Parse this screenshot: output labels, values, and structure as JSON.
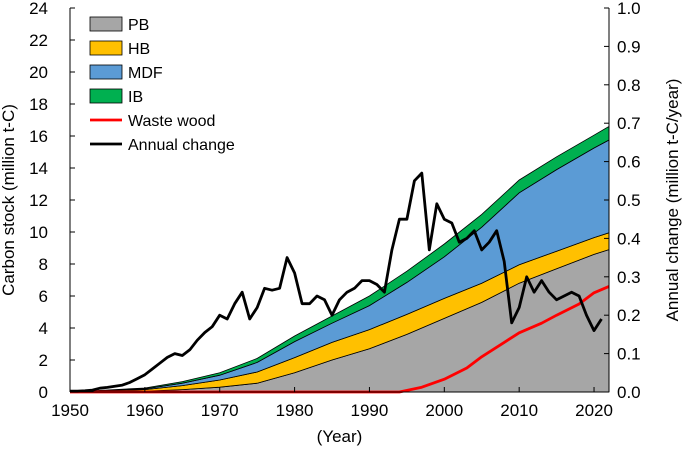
{
  "chart_data": {
    "type": "area",
    "xlabel": "(Year)",
    "ylabel_left": "Carbon stock (million t-C)",
    "ylabel_right": "Annual change (million t-C/year)",
    "xlim": [
      1950,
      2022
    ],
    "ylim_left": [
      0,
      24
    ],
    "ylim_right": [
      0,
      1.0
    ],
    "x_ticks": [
      1950,
      1960,
      1970,
      1980,
      1990,
      2000,
      2010,
      2020
    ],
    "x_tick_labels": [
      "1950",
      "1960",
      "1970",
      "1980",
      "1990",
      "2000",
      "2010",
      "2020"
    ],
    "y_left_ticks": [
      0,
      2,
      4,
      6,
      8,
      10,
      12,
      14,
      16,
      18,
      20,
      22,
      24
    ],
    "y_left_tick_labels": [
      "0",
      "2",
      "4",
      "6",
      "8",
      "10",
      "12",
      "14",
      "16",
      "18",
      "20",
      "22",
      "24"
    ],
    "y_right_ticks": [
      0,
      0.1,
      0.2,
      0.3,
      0.4,
      0.5,
      0.6,
      0.7,
      0.8,
      0.9,
      1.0
    ],
    "y_right_tick_labels": [
      "0.0",
      "0.1",
      "0.2",
      "0.3",
      "0.4",
      "0.5",
      "0.6",
      "0.7",
      "0.8",
      "0.9",
      "1.0"
    ],
    "grid": false,
    "legend_position": "top-left",
    "legend": [
      {
        "label": "PB",
        "kind": "area",
        "color": "#a6a6a6"
      },
      {
        "label": "HB",
        "kind": "area",
        "color": "#ffc000"
      },
      {
        "label": "MDF",
        "kind": "area",
        "color": "#5b9bd5"
      },
      {
        "label": "IB",
        "kind": "area",
        "color": "#00b050"
      },
      {
        "label": "Waste wood",
        "kind": "line",
        "color": "#ff0000"
      },
      {
        "label": "Annual change",
        "kind": "line",
        "color": "#000000"
      }
    ],
    "stacked_series": [
      {
        "name": "PB",
        "color": "#a6a6a6",
        "x": [
          1950,
          1960,
          1965,
          1970,
          1975,
          1980,
          1985,
          1990,
          1995,
          2000,
          2005,
          2010,
          2015,
          2020,
          2022
        ],
        "values": [
          0,
          0.05,
          0.15,
          0.3,
          0.55,
          1.2,
          2.0,
          2.7,
          3.6,
          4.6,
          5.6,
          6.8,
          7.7,
          8.6,
          8.9
        ]
      },
      {
        "name": "HB",
        "color": "#ffc000",
        "x": [
          1950,
          1960,
          1965,
          1970,
          1975,
          1980,
          1985,
          1990,
          1995,
          2000,
          2005,
          2010,
          2015,
          2020,
          2022
        ],
        "values": [
          0,
          0.1,
          0.25,
          0.45,
          0.7,
          0.95,
          1.1,
          1.2,
          1.25,
          1.25,
          1.2,
          1.15,
          1.1,
          1.05,
          1.05
        ]
      },
      {
        "name": "MDF",
        "color": "#5b9bd5",
        "x": [
          1950,
          1960,
          1965,
          1970,
          1975,
          1980,
          1985,
          1990,
          1995,
          2000,
          2005,
          2010,
          2015,
          2020,
          2022
        ],
        "values": [
          0,
          0.05,
          0.15,
          0.3,
          0.6,
          1.0,
          1.2,
          1.5,
          2.0,
          2.6,
          3.5,
          4.5,
          5.1,
          5.6,
          5.8
        ]
      },
      {
        "name": "IB",
        "color": "#00b050",
        "x": [
          1950,
          1960,
          1965,
          1970,
          1975,
          1980,
          1985,
          1990,
          1995,
          2000,
          2005,
          2010,
          2015,
          2020,
          2022
        ],
        "values": [
          0,
          0.05,
          0.1,
          0.15,
          0.25,
          0.35,
          0.45,
          0.6,
          0.7,
          0.8,
          0.8,
          0.8,
          0.8,
          0.8,
          0.85
        ]
      }
    ],
    "line_series": [
      {
        "name": "Waste wood",
        "axis": "left",
        "color": "#ff0000",
        "x": [
          1950,
          1994,
          1997,
          2000,
          2003,
          2005,
          2008,
          2010,
          2013,
          2015,
          2018,
          2020,
          2022
        ],
        "values": [
          0,
          0,
          0.3,
          0.8,
          1.5,
          2.2,
          3.1,
          3.7,
          4.3,
          4.8,
          5.5,
          6.2,
          6.6
        ]
      },
      {
        "name": "Annual change",
        "axis": "right",
        "color": "#000000",
        "x": [
          1950,
          1951,
          1952,
          1953,
          1954,
          1955,
          1956,
          1957,
          1958,
          1959,
          1960,
          1961,
          1962,
          1963,
          1964,
          1965,
          1966,
          1967,
          1968,
          1969,
          1970,
          1971,
          1972,
          1973,
          1974,
          1975,
          1976,
          1977,
          1978,
          1979,
          1980,
          1981,
          1982,
          1983,
          1984,
          1985,
          1986,
          1987,
          1988,
          1989,
          1990,
          1991,
          1992,
          1993,
          1994,
          1995,
          1996,
          1997,
          1998,
          1999,
          2000,
          2001,
          2002,
          2003,
          2004,
          2005,
          2006,
          2007,
          2008,
          2009,
          2010,
          2011,
          2012,
          2013,
          2014,
          2015,
          2016,
          2017,
          2018,
          2019,
          2020,
          2021
        ],
        "values": [
          0.002,
          0.002,
          0.003,
          0.005,
          0.01,
          0.012,
          0.015,
          0.018,
          0.025,
          0.035,
          0.045,
          0.06,
          0.075,
          0.09,
          0.1,
          0.095,
          0.11,
          0.135,
          0.155,
          0.17,
          0.2,
          0.19,
          0.23,
          0.26,
          0.19,
          0.22,
          0.27,
          0.265,
          0.27,
          0.35,
          0.31,
          0.23,
          0.23,
          0.25,
          0.24,
          0.2,
          0.24,
          0.26,
          0.27,
          0.29,
          0.29,
          0.28,
          0.26,
          0.37,
          0.45,
          0.45,
          0.55,
          0.57,
          0.37,
          0.49,
          0.45,
          0.44,
          0.39,
          0.4,
          0.42,
          0.37,
          0.39,
          0.42,
          0.34,
          0.18,
          0.22,
          0.3,
          0.26,
          0.29,
          0.26,
          0.24,
          0.25,
          0.26,
          0.25,
          0.2,
          0.16,
          0.19
        ]
      }
    ]
  }
}
